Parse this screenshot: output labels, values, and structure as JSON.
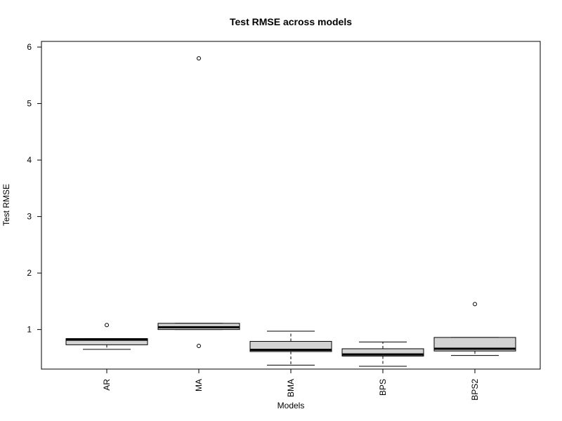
{
  "chart_data": {
    "type": "boxplot",
    "title": "Test RMSE across models",
    "xlabel": "Models",
    "ylabel": "Test RMSE",
    "ylim": [
      0.3,
      6.1
    ],
    "yticks": [
      1,
      2,
      3,
      4,
      5,
      6
    ],
    "categories": [
      "AR",
      "MA",
      "BMA",
      "BPS",
      "BPS2"
    ],
    "boxes": [
      {
        "category": "AR",
        "whisker_low": 0.65,
        "q1": 0.73,
        "median": 0.82,
        "q3": 0.84,
        "whisker_high": 0.84,
        "outliers": [
          1.08
        ]
      },
      {
        "category": "MA",
        "whisker_low": 1.0,
        "q1": 1.0,
        "median": 1.04,
        "q3": 1.11,
        "whisker_high": 1.11,
        "outliers": [
          5.8,
          0.71
        ]
      },
      {
        "category": "BMA",
        "whisker_low": 0.37,
        "q1": 0.61,
        "median": 0.64,
        "q3": 0.79,
        "whisker_high": 0.97,
        "outliers": []
      },
      {
        "category": "BPS",
        "whisker_low": 0.35,
        "q1": 0.53,
        "median": 0.56,
        "q3": 0.66,
        "whisker_high": 0.78,
        "outliers": []
      },
      {
        "category": "BPS2",
        "whisker_low": 0.54,
        "q1": 0.62,
        "median": 0.66,
        "q3": 0.86,
        "whisker_high": 0.86,
        "outliers": [
          1.45
        ]
      }
    ],
    "box_fill": "#d3d3d3",
    "grid": false,
    "legend": "none"
  }
}
